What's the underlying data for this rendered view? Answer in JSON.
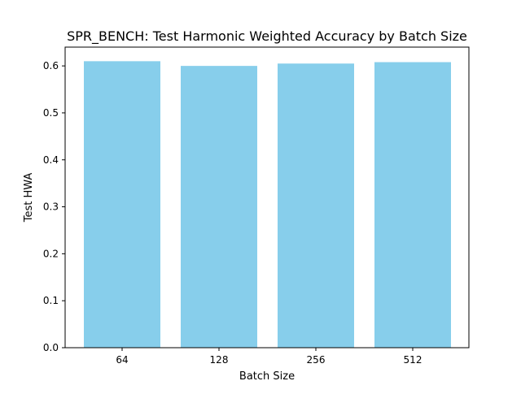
{
  "chart_data": {
    "type": "bar",
    "title": "SPR_BENCH: Test Harmonic Weighted Accuracy by Batch Size",
    "xlabel": "Batch Size",
    "ylabel": "Test HWA",
    "categories": [
      "64",
      "128",
      "256",
      "512"
    ],
    "values": [
      0.61,
      0.6,
      0.605,
      0.608
    ],
    "ylim": [
      0,
      0.64
    ],
    "yticks": [
      0.0,
      0.1,
      0.2,
      0.3,
      0.4,
      0.5,
      0.6
    ],
    "ytick_labels": [
      "0.0",
      "0.1",
      "0.2",
      "0.3",
      "0.4",
      "0.5",
      "0.6"
    ],
    "bar_color": "#87ceeb",
    "grid": false,
    "legend": "none"
  }
}
